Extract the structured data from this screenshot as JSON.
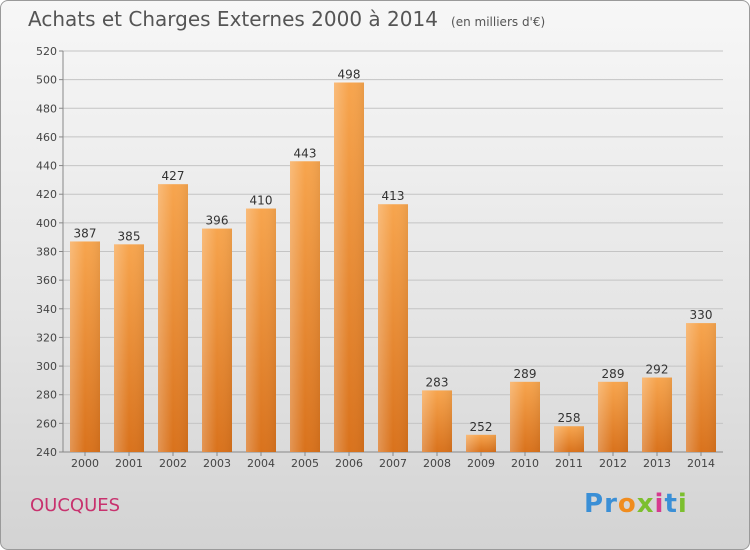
{
  "chart_data": {
    "type": "bar",
    "title": "Achats et Charges Externes 2000 à 2014",
    "subtitle": "(en milliers d'€)",
    "categories": [
      "2000",
      "2001",
      "2002",
      "2003",
      "2004",
      "2005",
      "2006",
      "2007",
      "2008",
      "2009",
      "2010",
      "2011",
      "2012",
      "2013",
      "2014"
    ],
    "values": [
      387,
      385,
      427,
      396,
      410,
      443,
      498,
      413,
      283,
      252,
      289,
      258,
      289,
      292,
      330
    ],
    "ylim": [
      240,
      520
    ],
    "yticks": [
      240,
      260,
      280,
      300,
      320,
      340,
      360,
      380,
      400,
      420,
      440,
      460,
      480,
      500,
      520
    ],
    "grid": true,
    "bar_color": "#f0902f"
  },
  "footer": {
    "city": "OUCQUES",
    "logo_text": "Proxiti"
  },
  "colors": {
    "city": "#c8326e",
    "logo": [
      "#3a8fd6",
      "#3a8fd6",
      "#f08c1e",
      "#7cbf2e",
      "#d63a8f",
      "#3a8fd6",
      "#7cbf2e"
    ]
  }
}
